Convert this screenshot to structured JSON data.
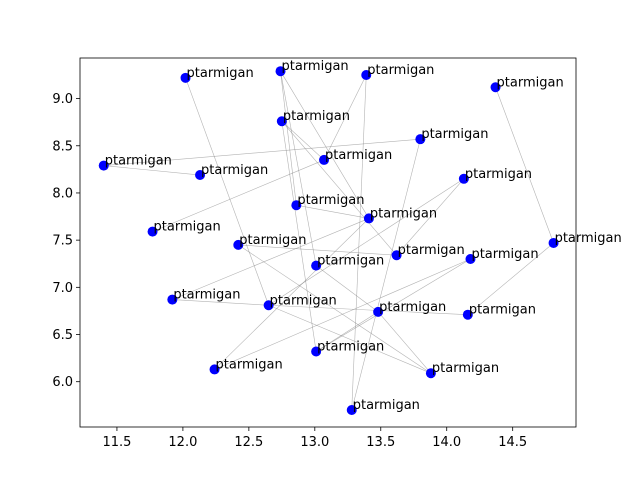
{
  "chart_data": {
    "type": "scatter",
    "title": "",
    "xlabel": "",
    "ylabel": "",
    "xlim": [
      11.22,
      14.98
    ],
    "ylim": [
      5.52,
      9.43
    ],
    "xticks": [
      "11.5",
      "12.0",
      "12.5",
      "13.0",
      "13.5",
      "14.0",
      "14.5"
    ],
    "yticks": [
      "6.0",
      "6.5",
      "7.0",
      "7.5",
      "8.0",
      "8.5",
      "9.0"
    ],
    "grid": false,
    "node_color": "#0000ff",
    "edge_color": "#808080",
    "nodes": [
      {
        "label": "ptarmigan",
        "x": 12.02,
        "y": 9.22
      },
      {
        "label": "ptarmigan",
        "x": 12.74,
        "y": 9.29
      },
      {
        "label": "ptarmigan",
        "x": 13.39,
        "y": 9.25
      },
      {
        "label": "ptarmigan",
        "x": 14.37,
        "y": 9.12
      },
      {
        "label": "ptarmigan",
        "x": 12.75,
        "y": 8.76
      },
      {
        "label": "ptarmigan",
        "x": 13.8,
        "y": 8.57
      },
      {
        "label": "ptarmigan",
        "x": 13.07,
        "y": 8.35
      },
      {
        "label": "ptarmigan",
        "x": 11.4,
        "y": 8.29
      },
      {
        "label": "ptarmigan",
        "x": 12.13,
        "y": 8.19
      },
      {
        "label": "ptarmigan",
        "x": 14.13,
        "y": 8.15
      },
      {
        "label": "ptarmigan",
        "x": 12.86,
        "y": 7.87
      },
      {
        "label": "ptarmigan",
        "x": 13.41,
        "y": 7.73
      },
      {
        "label": "ptarmigan",
        "x": 11.77,
        "y": 7.59
      },
      {
        "label": "ptarmigan",
        "x": 12.42,
        "y": 7.45
      },
      {
        "label": "ptarmigan",
        "x": 14.81,
        "y": 7.47
      },
      {
        "label": "ptarmigan",
        "x": 13.62,
        "y": 7.34
      },
      {
        "label": "ptarmigan",
        "x": 14.18,
        "y": 7.3
      },
      {
        "label": "ptarmigan",
        "x": 13.01,
        "y": 7.23
      },
      {
        "label": "ptarmigan",
        "x": 11.92,
        "y": 6.87
      },
      {
        "label": "ptarmigan",
        "x": 12.65,
        "y": 6.81
      },
      {
        "label": "ptarmigan",
        "x": 13.48,
        "y": 6.74
      },
      {
        "label": "ptarmigan",
        "x": 14.16,
        "y": 6.71
      },
      {
        "label": "ptarmigan",
        "x": 13.01,
        "y": 6.32
      },
      {
        "label": "ptarmigan",
        "x": 12.24,
        "y": 6.13
      },
      {
        "label": "ptarmigan",
        "x": 13.88,
        "y": 6.09
      },
      {
        "label": "ptarmigan",
        "x": 13.28,
        "y": 5.7
      }
    ],
    "edges": [
      [
        0,
        19
      ],
      [
        1,
        10
      ],
      [
        1,
        17
      ],
      [
        1,
        11
      ],
      [
        2,
        6
      ],
      [
        2,
        25
      ],
      [
        3,
        14
      ],
      [
        4,
        22
      ],
      [
        4,
        15
      ],
      [
        5,
        7
      ],
      [
        5,
        25
      ],
      [
        6,
        4
      ],
      [
        6,
        12
      ],
      [
        8,
        7
      ],
      [
        9,
        19
      ],
      [
        9,
        15
      ],
      [
        10,
        11
      ],
      [
        11,
        23
      ],
      [
        13,
        24
      ],
      [
        13,
        15
      ],
      [
        14,
        21
      ],
      [
        16,
        22
      ],
      [
        16,
        23
      ],
      [
        17,
        20
      ],
      [
        18,
        11
      ],
      [
        19,
        21
      ],
      [
        19,
        24
      ],
      [
        20,
        22
      ],
      [
        20,
        24
      ],
      [
        18,
        19
      ]
    ]
  }
}
